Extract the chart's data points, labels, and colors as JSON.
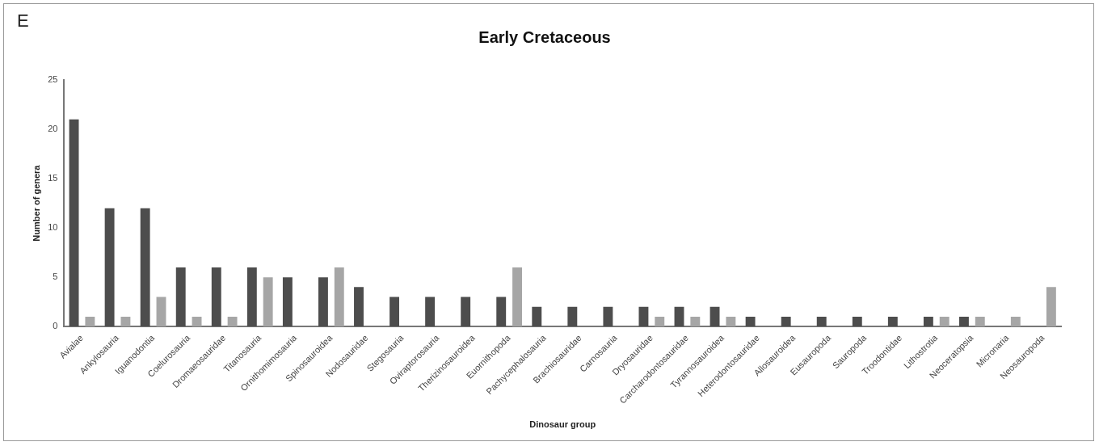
{
  "chart_data": {
    "type": "bar",
    "title": "Early Cretaceous",
    "xlabel": "Dinosaur group",
    "ylabel": "Number of genera",
    "annotations": [
      "E"
    ],
    "categories": [
      "Avialae",
      "Ankylosauria",
      "Iguanodontia",
      "Coelurosauria",
      "Dromaeosauridae",
      "Titanosauria",
      "Ornithomimosauria",
      "Spinosauroidea",
      "Nodosauridae",
      "Stegosauria",
      "Oviraptorosauria",
      "Therizinosauroidea",
      "Euornithopoda",
      "Pachycephalosauria",
      "Brachiosauridae",
      "Carnosauria",
      "Dryosauridae",
      "Carcharodontosauridae",
      "Tyrannosauroidea",
      "Heterodontosauridae",
      "Allosauroidea",
      "Eusauropoda",
      "Sauropoda",
      "Troodontidae",
      "Lithostrotia",
      "Neoceratopsia",
      "Micronaria",
      "Neosauropoda"
    ],
    "series": [
      {
        "color": "#4d4d4d",
        "values": [
          21,
          12,
          12,
          6,
          6,
          6,
          5,
          5,
          4,
          3,
          3,
          3,
          3,
          2,
          2,
          2,
          2,
          2,
          2,
          1,
          1,
          1,
          1,
          1,
          1,
          1,
          0,
          0
        ]
      },
      {
        "color": "#a6a6a6",
        "values": [
          1,
          1,
          3,
          1,
          1,
          5,
          0,
          6,
          0,
          0,
          0,
          0,
          6,
          0,
          0,
          0,
          1,
          1,
          1,
          0,
          0,
          0,
          0,
          0,
          1,
          1,
          1,
          4
        ]
      }
    ],
    "ylim": [
      0,
      25
    ],
    "yticks": [
      0,
      5,
      10,
      15,
      20,
      25
    ],
    "grid": false,
    "legend": false
  }
}
